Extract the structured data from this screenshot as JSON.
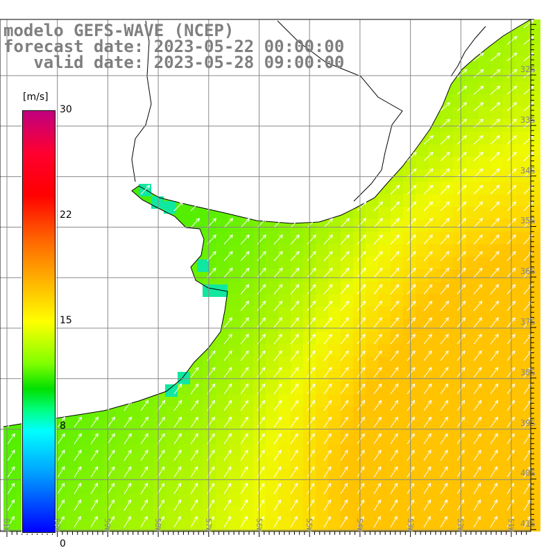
{
  "title": {
    "line1": "modelo GEFS-WAVE (NCEP)",
    "line2": "forecast date: 2023-05-22 00:00:00",
    "line3": "   valid date: 2023-05-28 09:00:00"
  },
  "colorbar": {
    "unit": "[m/s]",
    "labels": [
      "30",
      "22",
      "15",
      "8",
      "0"
    ]
  },
  "lat_labels": [
    "32S",
    "33S",
    "34S",
    "35S",
    "36S",
    "37S",
    "38S",
    "39S",
    "40S",
    "41S"
  ],
  "lon_labels": [
    "61W",
    "60W",
    "59W",
    "58W",
    "57W",
    "56W",
    "55W",
    "54W",
    "53W",
    "52W",
    "51W"
  ]
}
